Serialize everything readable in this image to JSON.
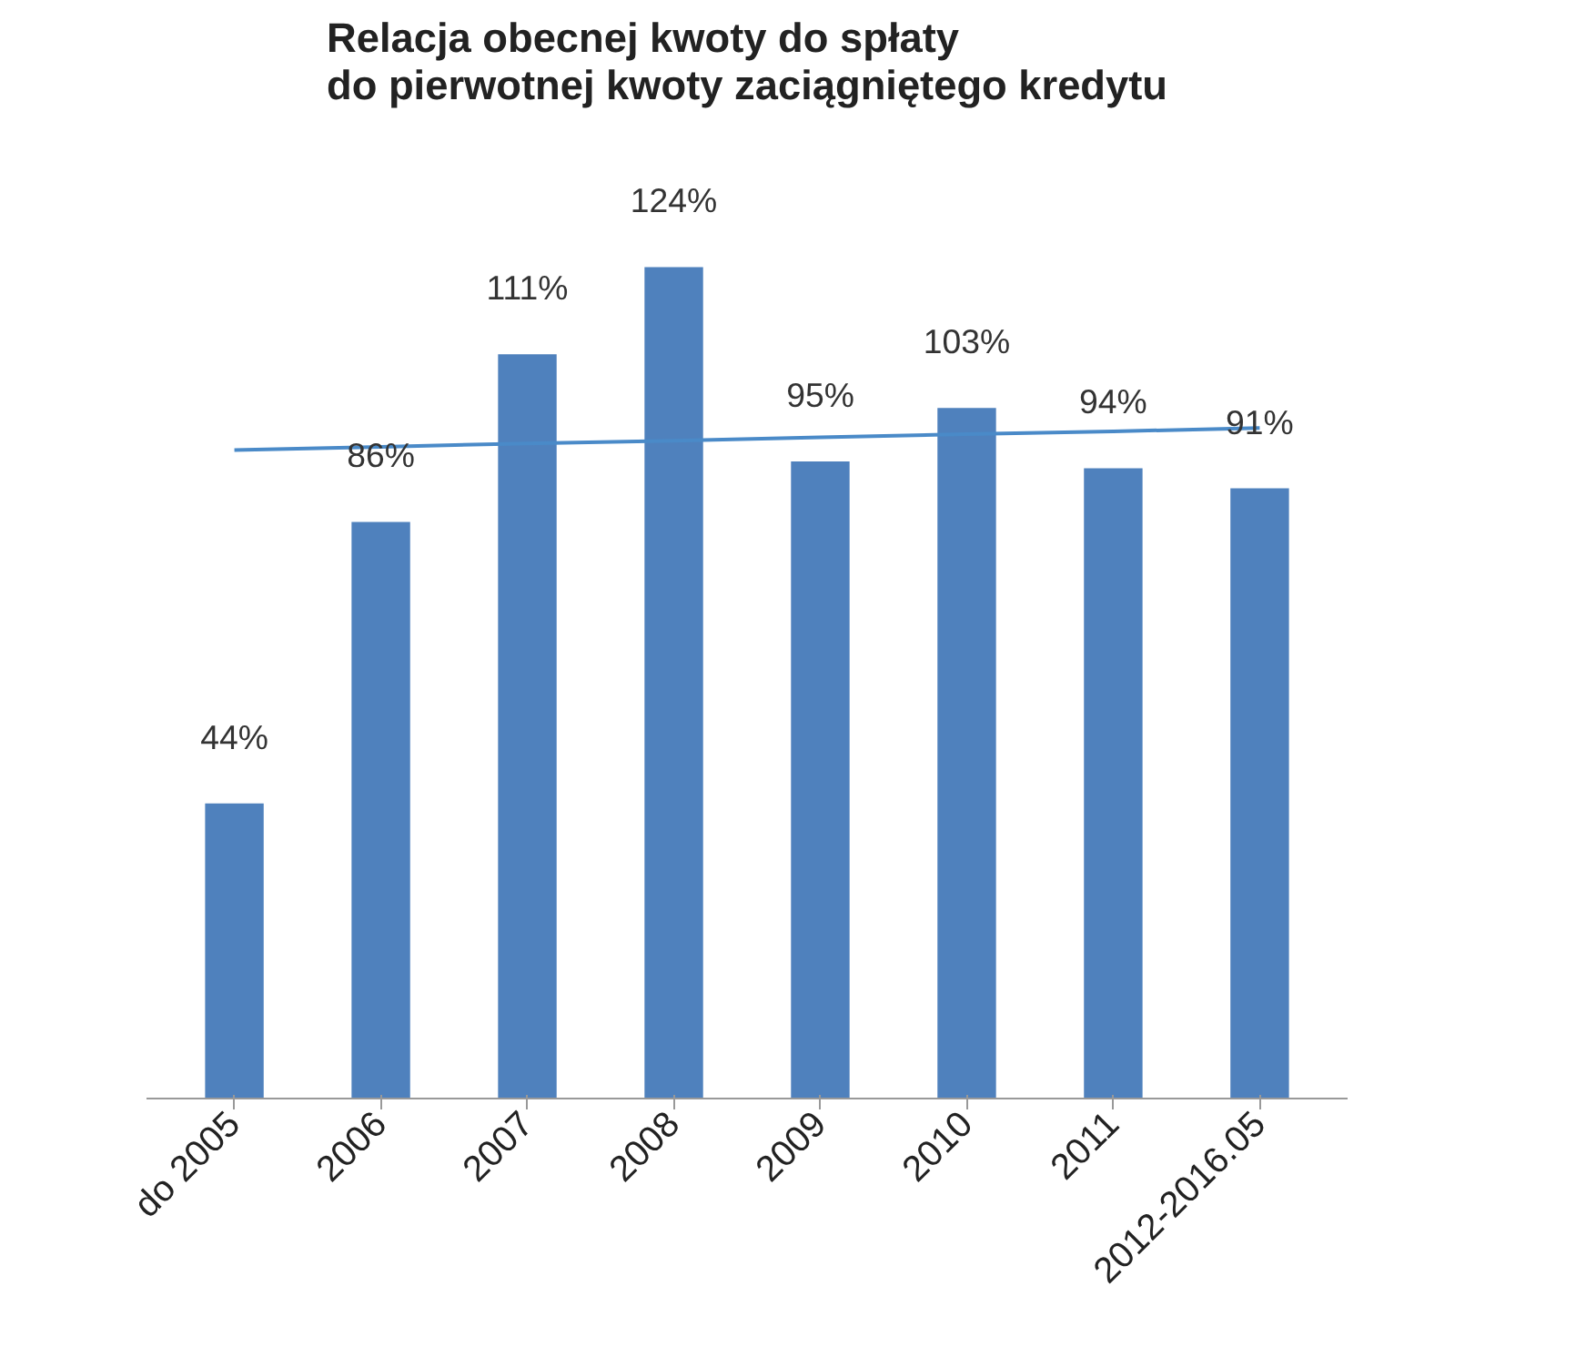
{
  "chart_data": {
    "type": "bar",
    "title": "Relacja obecnej kwoty do spłaty\ndo pierwotnej kwoty zaciągniętego kredytu",
    "categories": [
      "do 2005",
      "2006",
      "2007",
      "2008",
      "2009",
      "2010",
      "2011",
      "2012-2016.05"
    ],
    "values": [
      44,
      86,
      111,
      124,
      95,
      103,
      94,
      91
    ],
    "value_labels": [
      "44%",
      "86%",
      "111%",
      "124%",
      "95%",
      "103%",
      "94%",
      "91%"
    ],
    "color": "#4f81bd",
    "series": [
      {
        "type": "line",
        "color": "#4a8ac8",
        "values": [
          96.7,
          97.2,
          97.7,
          98.1,
          98.6,
          99.1,
          99.5,
          100
        ]
      }
    ],
    "grid": false
  }
}
